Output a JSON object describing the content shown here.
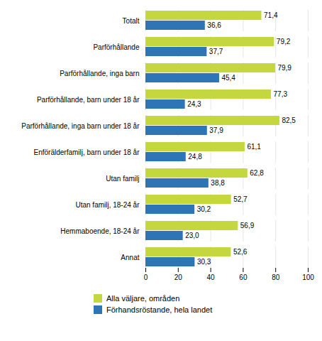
{
  "chart_data": {
    "type": "bar",
    "orientation": "horizontal",
    "categories": [
      "Totalt",
      "Parförhållande",
      "Parförhållande, inga barn",
      "Parförhållande, barn under 18 år",
      "Parförhållande, inga barn under 18 år",
      "Enförälderfamilj, barn under 18 år",
      "Utan familj",
      "Utan familj, 18-24 år",
      "Hemmaboende, 18-24 år",
      "Annat"
    ],
    "series": [
      {
        "name": "Alla väljare, områden",
        "color": "#c5d73e",
        "values": [
          71.4,
          79.2,
          79.9,
          77.3,
          82.5,
          61.1,
          62.8,
          52.7,
          56.9,
          52.6
        ],
        "value_labels": [
          "71,4",
          "79,2",
          "79,9",
          "77,3",
          "82,5",
          "61,1",
          "62,8",
          "52,7",
          "56,9",
          "52,6"
        ]
      },
      {
        "name": "Förhandsröstande, hela landet",
        "color": "#2e75b6",
        "values": [
          36.6,
          37.7,
          45.4,
          24.3,
          37.9,
          24.8,
          38.8,
          30.2,
          23.0,
          30.3
        ],
        "value_labels": [
          "36,6",
          "37,7",
          "45,4",
          "24,3",
          "37,9",
          "24,8",
          "38,8",
          "30,2",
          "23,0",
          "30,3"
        ]
      }
    ],
    "xlim": [
      0,
      100
    ],
    "xticks": [
      0,
      20,
      40,
      60,
      80,
      100
    ],
    "grid": true,
    "data_labels": true,
    "legend": "bottom"
  }
}
